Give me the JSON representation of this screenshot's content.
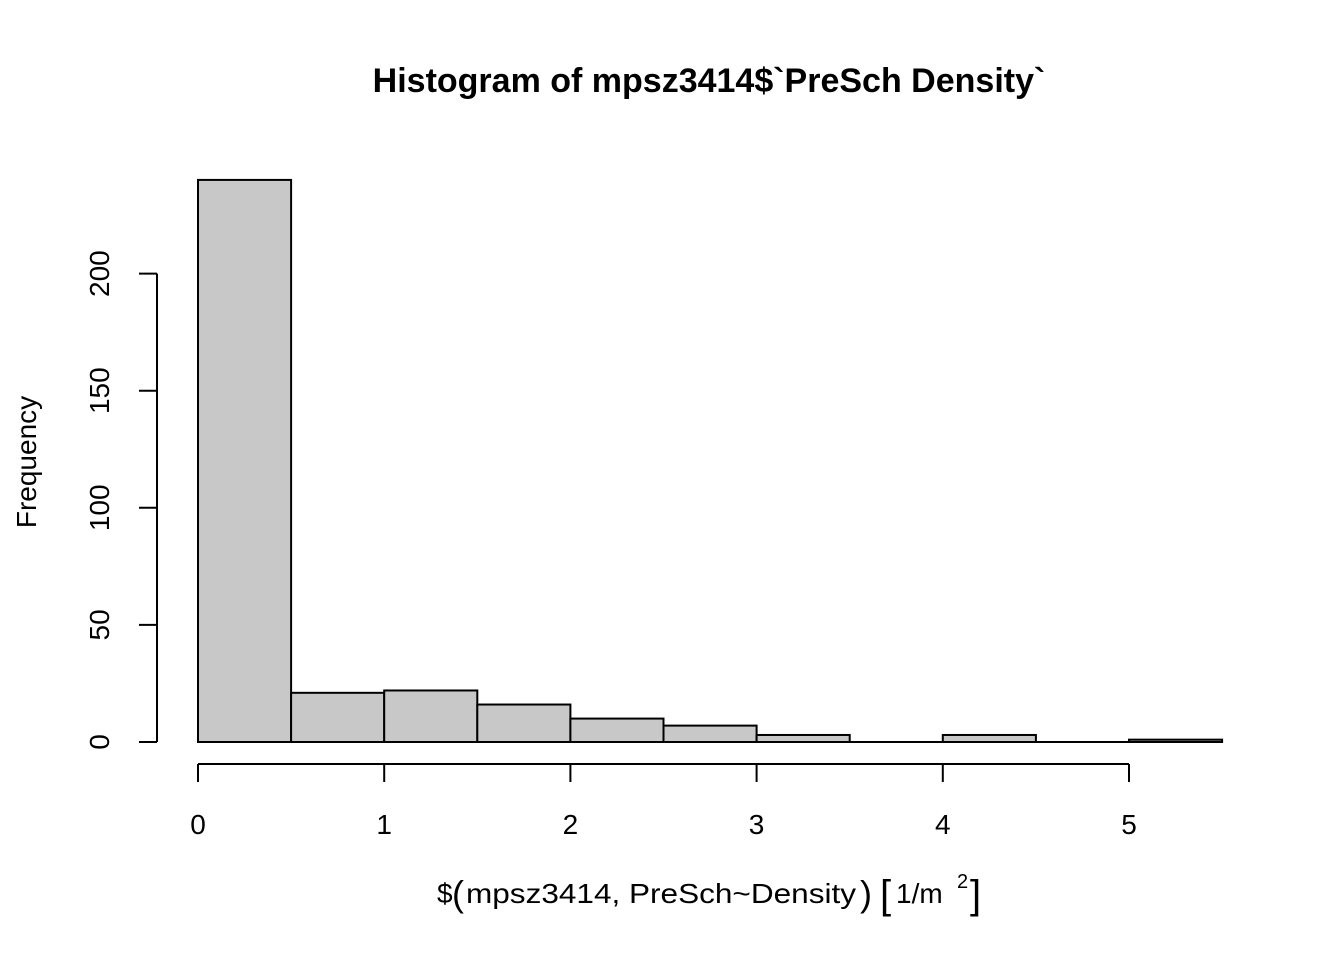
{
  "chart_data": {
    "type": "bar",
    "title": "Histogram of mpsz3414$`PreSch Density`",
    "xlabel": {
      "prefix": "$",
      "open_paren": "(",
      "inner": "mpsz3414, PreSch~Density",
      "close_paren": ")",
      "open_bracket": "[",
      "unit": "1/m",
      "superscript": "2",
      "close_bracket": "]"
    },
    "ylabel": "Frequency",
    "bins": [
      {
        "x0": 0.0,
        "x1": 0.5,
        "count": 240
      },
      {
        "x0": 0.5,
        "x1": 1.0,
        "count": 21
      },
      {
        "x0": 1.0,
        "x1": 1.5,
        "count": 22
      },
      {
        "x0": 1.5,
        "x1": 2.0,
        "count": 16
      },
      {
        "x0": 2.0,
        "x1": 2.5,
        "count": 10
      },
      {
        "x0": 2.5,
        "x1": 3.0,
        "count": 7
      },
      {
        "x0": 3.0,
        "x1": 3.5,
        "count": 3
      },
      {
        "x0": 3.5,
        "x1": 4.0,
        "count": 0
      },
      {
        "x0": 4.0,
        "x1": 4.5,
        "count": 3
      },
      {
        "x0": 4.5,
        "x1": 5.0,
        "count": 0
      },
      {
        "x0": 5.0,
        "x1": 5.5,
        "count": 1
      }
    ],
    "xticks": [
      0,
      1,
      2,
      3,
      4,
      5
    ],
    "xtick_labels": [
      "0",
      "1",
      "2",
      "3",
      "4",
      "5"
    ],
    "yticks": [
      0,
      50,
      100,
      150,
      200
    ],
    "ytick_labels": [
      "0",
      "50",
      "100",
      "150",
      "200"
    ],
    "xlim": [
      0,
      5.5
    ],
    "ylim": [
      0,
      240
    ],
    "bar_color": "#c8c8c8",
    "grid": false
  }
}
